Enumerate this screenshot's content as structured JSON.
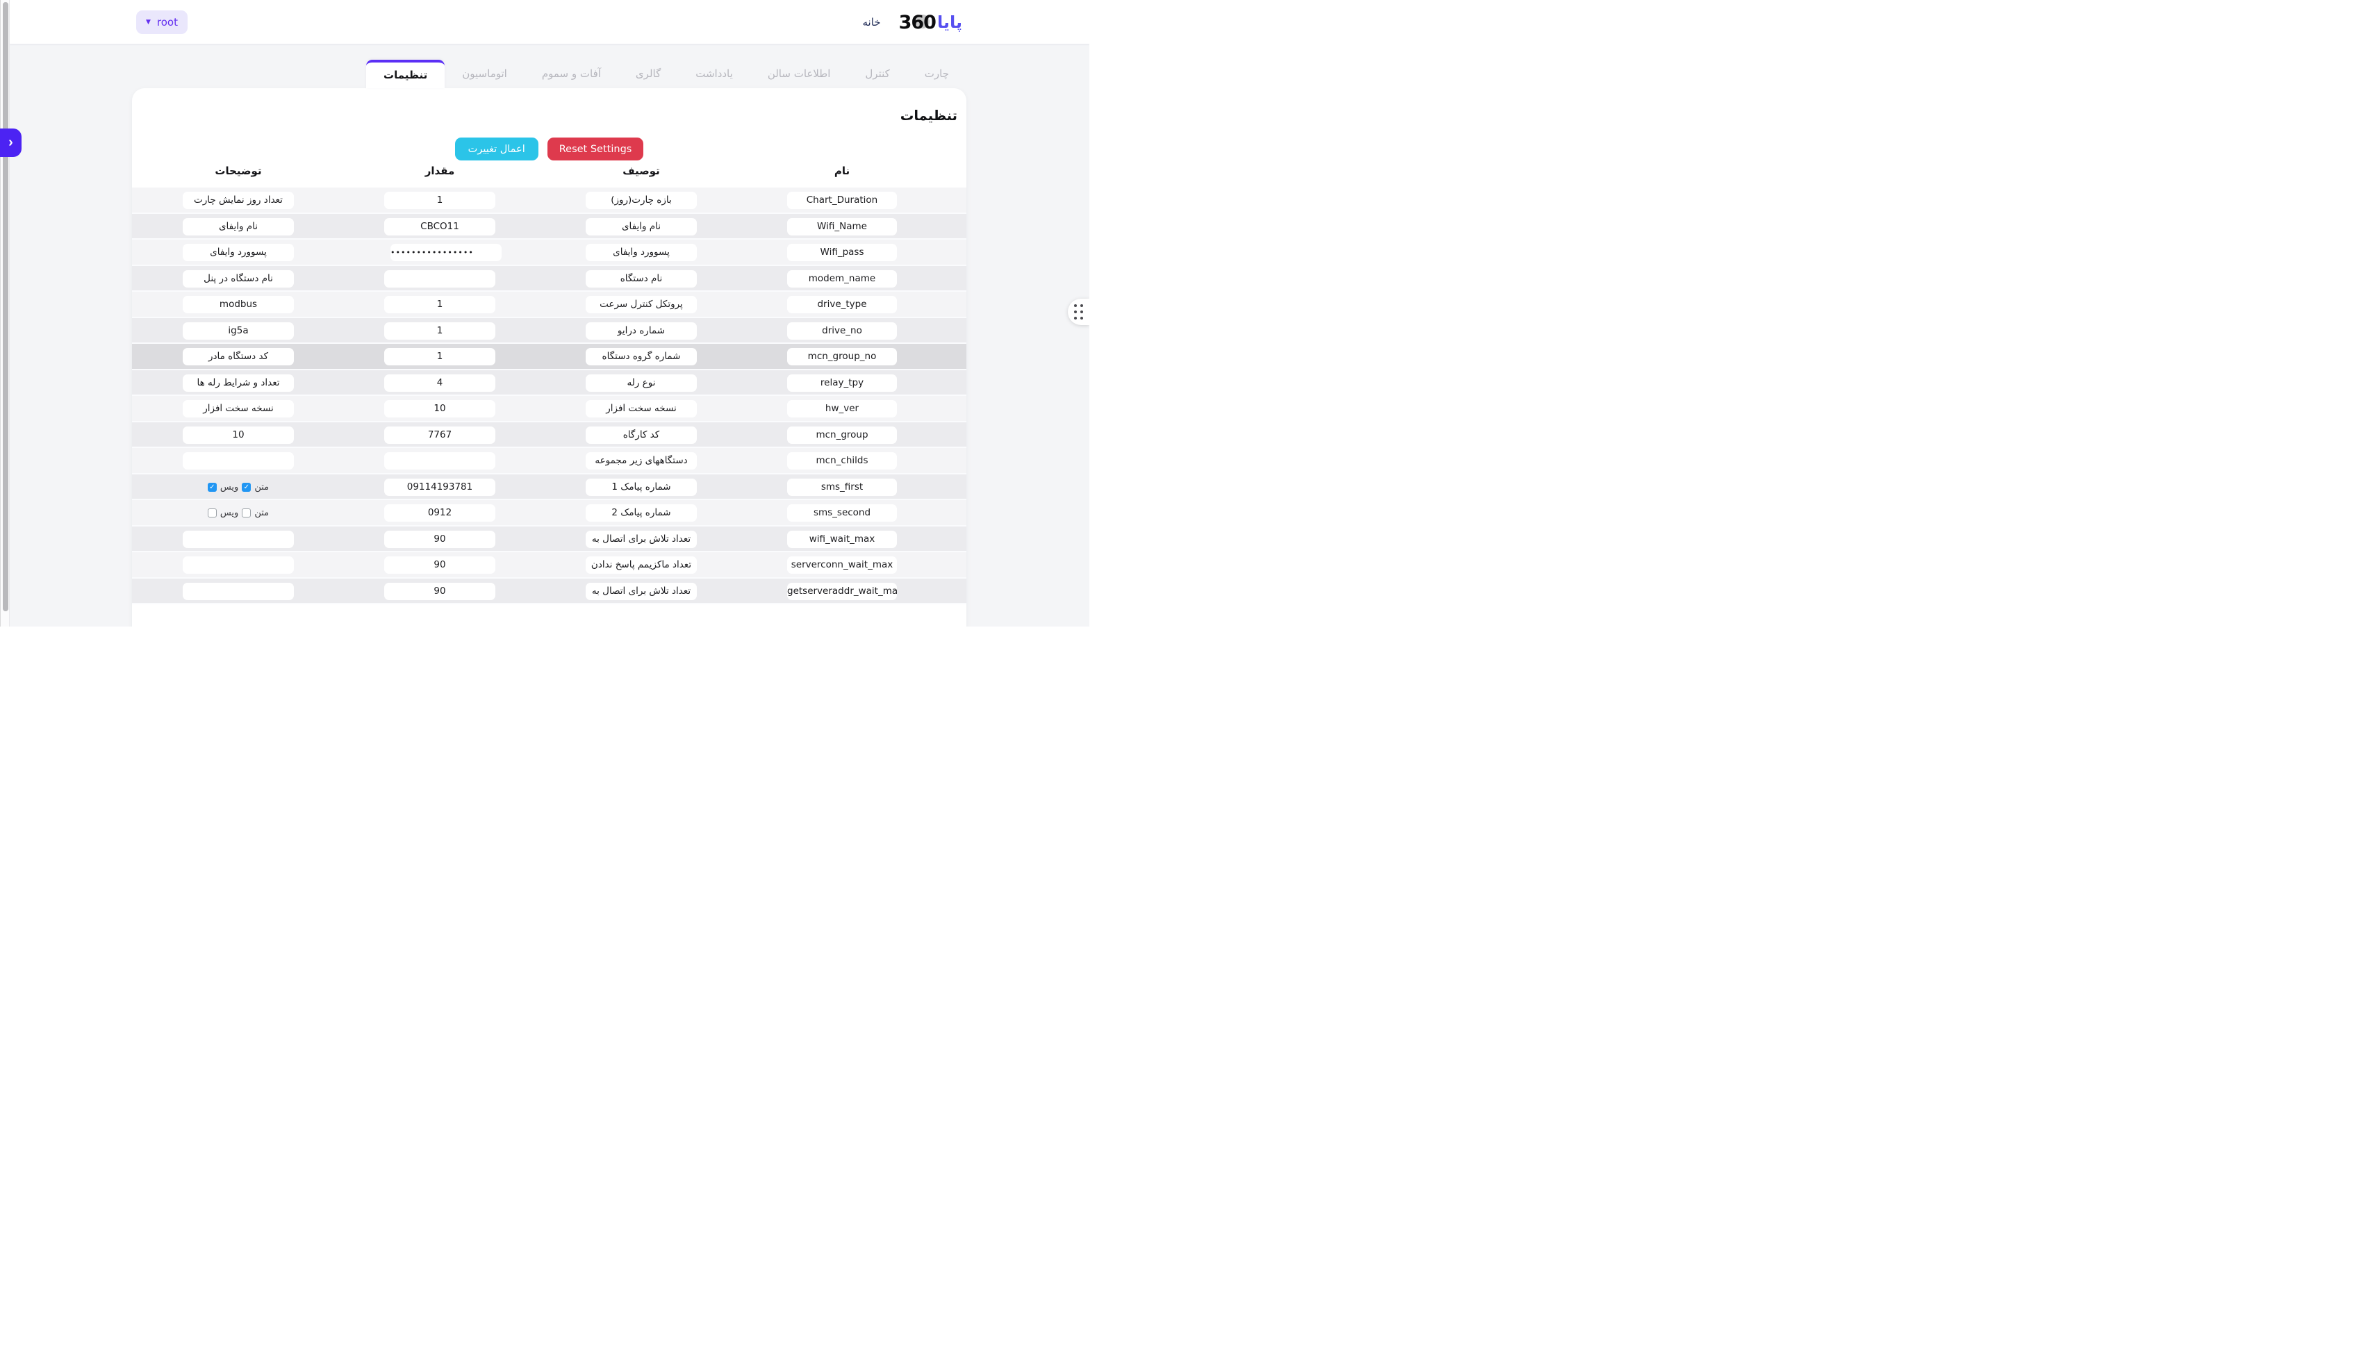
{
  "brand": {
    "logo_fa": "پایا",
    "logo_num": "360",
    "home_link": "خانه"
  },
  "navbar": {
    "farm_selector": "root",
    "caret_icon": "▼"
  },
  "tabs": [
    {
      "label": "چارت",
      "active": false
    },
    {
      "label": "کنترل",
      "active": false
    },
    {
      "label": "اطلاعات سالن",
      "active": false
    },
    {
      "label": "یادداشت",
      "active": false
    },
    {
      "label": "گالری",
      "active": false
    },
    {
      "label": "آفات و سموم",
      "active": false
    },
    {
      "label": "اتوماسیون",
      "active": false
    },
    {
      "label": "تنظیمات",
      "active": true
    }
  ],
  "page": {
    "title": "تنظیمات",
    "apply_button": "اعمال تغییرت",
    "reset_button": "Reset Settings"
  },
  "table": {
    "headers": {
      "name": "نام",
      "description": "توصیف",
      "value": "مقدار",
      "notes": "توضیحات"
    },
    "rows": [
      {
        "name": "Chart_Duration",
        "description": "بازه چارت(روز)",
        "value": "1",
        "notes": {
          "type": "input",
          "value": "تعداد روز نمایش چارت"
        }
      },
      {
        "name": "Wifi_Name",
        "description": "نام وایفای",
        "value": "CBCO11",
        "notes": {
          "type": "input",
          "value": "نام وایفای"
        }
      },
      {
        "name": "Wifi_pass",
        "description": "پسوورد وایفای",
        "value": "••••••••••••••••",
        "masked": true,
        "notes": {
          "type": "input",
          "value": "پسوورد وایفای"
        }
      },
      {
        "name": "modem_name",
        "description": "نام دستگاه",
        "value": "",
        "notes": {
          "type": "input",
          "value": "نام دستگاه در پنل"
        }
      },
      {
        "name": "drive_type",
        "description": "پروتکل کنترل سرعت",
        "value": "1",
        "notes": {
          "type": "input",
          "value": "modbus"
        }
      },
      {
        "name": "drive_no",
        "description": "شماره درایو",
        "value": "1",
        "notes": {
          "type": "input",
          "value": "ig5a"
        }
      },
      {
        "name": "mcn_group_no",
        "description": "شماره گروه دستگاه",
        "value": "1",
        "highlighted": true,
        "notes": {
          "type": "input",
          "value": "کد دستگاه مادر"
        }
      },
      {
        "name": "relay_tpy",
        "description": "نوع رله",
        "value": "4",
        "notes": {
          "type": "input",
          "value": "تعداد و شرایط رله ها"
        }
      },
      {
        "name": "hw_ver",
        "description": "نسخه سخت افزار",
        "value": "10",
        "notes": {
          "type": "input",
          "value": "نسخه سخت افزار"
        }
      },
      {
        "name": "mcn_group",
        "description": "کد کارگاه",
        "value": "7767",
        "notes": {
          "type": "input",
          "value": "10"
        }
      },
      {
        "name": "mcn_childs",
        "description": "دستگاههای زیر مجموعه",
        "value": "",
        "notes": {
          "type": "input",
          "value": ""
        }
      },
      {
        "name": "sms_first",
        "description": "شماره پیامک 1",
        "value": "09114193781",
        "notes": {
          "type": "checkboxes",
          "items": [
            {
              "label": "متن",
              "checked": true
            },
            {
              "label": "ویس",
              "checked": true
            }
          ]
        }
      },
      {
        "name": "sms_second",
        "description": "شماره پیامک 2",
        "value": "0912",
        "notes": {
          "type": "checkboxes",
          "items": [
            {
              "label": "متن",
              "checked": false
            },
            {
              "label": "ویس",
              "checked": false
            }
          ]
        }
      },
      {
        "name": "wifi_wait_max",
        "description": "تعداد تلاش برای اتصال به",
        "value": "90",
        "notes": {
          "type": "input",
          "value": ""
        }
      },
      {
        "name": "serverconn_wait_max",
        "description": "تعداد ماکزیمم پاسخ ندادن",
        "value": "90",
        "notes": {
          "type": "input",
          "value": ""
        }
      },
      {
        "name": "getserveraddr_wait_max",
        "description": "تعداد تلاش برای اتصال به",
        "value": "90",
        "notes": {
          "type": "input",
          "value": ""
        }
      }
    ]
  },
  "side_controls": {
    "expand_chevron": "›",
    "check_glyph": "✓"
  },
  "colors": {
    "accent_purple": "#5b2ff5",
    "expand_button_purple": "#4c23f3",
    "chip_bg": "#eae7fc",
    "chip_text": "#6430f0",
    "apply_cyan": "#2bc4e8",
    "reset_red": "#de3a4d",
    "checkbox_blue": "#2196f3",
    "logo_blue": "#564ff0",
    "home_link_navy": "#1f2b56",
    "row_odd": "#f4f4f6",
    "row_even": "#ebebee",
    "row_highlight": "#dcdcdf",
    "page_bg": "#f4f5f7"
  }
}
